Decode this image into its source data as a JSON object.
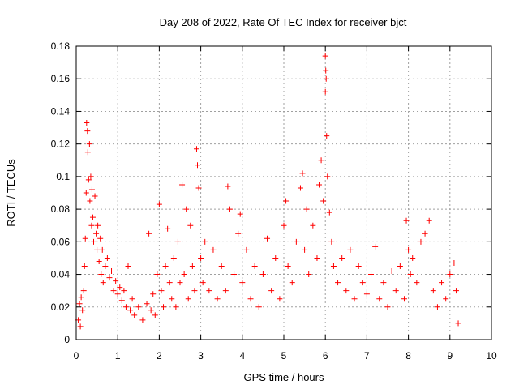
{
  "chart_data": {
    "type": "scatter",
    "title": "Day 208 of 2022, Rate Of TEC Index for receiver bjct",
    "xlabel": "GPS time / hours",
    "ylabel": "ROTI / TECUs",
    "xlim": [
      0,
      10
    ],
    "ylim": [
      0,
      0.18
    ],
    "x_ticks": [
      "0",
      "1",
      "2",
      "3",
      "4",
      "5",
      "6",
      "7",
      "8",
      "9",
      "10"
    ],
    "y_ticks": [
      "0",
      "0.02",
      "0.04",
      "0.06",
      "0.08",
      "0.1",
      "0.12",
      "0.14",
      "0.16",
      "0.18"
    ],
    "grid": true,
    "marker": "plus",
    "marker_color": "#ff0000",
    "series": [
      {
        "values": [
          [
            0.05,
            0.012
          ],
          [
            0.08,
            0.022
          ],
          [
            0.1,
            0.008
          ],
          [
            0.12,
            0.026
          ],
          [
            0.15,
            0.018
          ],
          [
            0.18,
            0.03
          ],
          [
            0.2,
            0.045
          ],
          [
            0.22,
            0.062
          ],
          [
            0.24,
            0.09
          ],
          [
            0.25,
            0.133
          ],
          [
            0.27,
            0.128
          ],
          [
            0.28,
            0.115
          ],
          [
            0.3,
            0.098
          ],
          [
            0.32,
            0.12
          ],
          [
            0.33,
            0.085
          ],
          [
            0.35,
            0.1
          ],
          [
            0.37,
            0.07
          ],
          [
            0.38,
            0.092
          ],
          [
            0.4,
            0.075
          ],
          [
            0.42,
            0.06
          ],
          [
            0.45,
            0.088
          ],
          [
            0.48,
            0.065
          ],
          [
            0.5,
            0.055
          ],
          [
            0.52,
            0.07
          ],
          [
            0.55,
            0.048
          ],
          [
            0.58,
            0.062
          ],
          [
            0.6,
            0.04
          ],
          [
            0.63,
            0.055
          ],
          [
            0.65,
            0.035
          ],
          [
            0.7,
            0.045
          ],
          [
            0.75,
            0.05
          ],
          [
            0.8,
            0.038
          ],
          [
            0.85,
            0.042
          ],
          [
            0.9,
            0.03
          ],
          [
            0.95,
            0.036
          ],
          [
            1.0,
            0.028
          ],
          [
            1.05,
            0.032
          ],
          [
            1.1,
            0.024
          ],
          [
            1.15,
            0.03
          ],
          [
            1.2,
            0.02
          ],
          [
            1.25,
            0.045
          ],
          [
            1.3,
            0.018
          ],
          [
            1.35,
            0.025
          ],
          [
            1.4,
            0.015
          ],
          [
            1.5,
            0.02
          ],
          [
            1.6,
            0.012
          ],
          [
            1.7,
            0.022
          ],
          [
            1.75,
            0.065
          ],
          [
            1.8,
            0.018
          ],
          [
            1.85,
            0.028
          ],
          [
            1.9,
            0.015
          ],
          [
            1.95,
            0.04
          ],
          [
            2.0,
            0.083
          ],
          [
            2.05,
            0.03
          ],
          [
            2.1,
            0.02
          ],
          [
            2.15,
            0.045
          ],
          [
            2.2,
            0.068
          ],
          [
            2.25,
            0.035
          ],
          [
            2.3,
            0.025
          ],
          [
            2.35,
            0.05
          ],
          [
            2.4,
            0.02
          ],
          [
            2.45,
            0.06
          ],
          [
            2.5,
            0.035
          ],
          [
            2.55,
            0.095
          ],
          [
            2.6,
            0.04
          ],
          [
            2.65,
            0.08
          ],
          [
            2.7,
            0.025
          ],
          [
            2.75,
            0.07
          ],
          [
            2.8,
            0.045
          ],
          [
            2.85,
            0.03
          ],
          [
            2.9,
            0.117
          ],
          [
            2.92,
            0.107
          ],
          [
            2.95,
            0.093
          ],
          [
            3.0,
            0.05
          ],
          [
            3.05,
            0.035
          ],
          [
            3.1,
            0.06
          ],
          [
            3.2,
            0.03
          ],
          [
            3.3,
            0.055
          ],
          [
            3.4,
            0.025
          ],
          [
            3.5,
            0.045
          ],
          [
            3.6,
            0.03
          ],
          [
            3.65,
            0.094
          ],
          [
            3.7,
            0.08
          ],
          [
            3.8,
            0.04
          ],
          [
            3.9,
            0.065
          ],
          [
            3.95,
            0.077
          ],
          [
            4.0,
            0.035
          ],
          [
            4.1,
            0.055
          ],
          [
            4.2,
            0.025
          ],
          [
            4.3,
            0.045
          ],
          [
            4.4,
            0.02
          ],
          [
            4.5,
            0.04
          ],
          [
            4.6,
            0.062
          ],
          [
            4.7,
            0.03
          ],
          [
            4.8,
            0.05
          ],
          [
            4.9,
            0.025
          ],
          [
            5.0,
            0.07
          ],
          [
            5.05,
            0.085
          ],
          [
            5.1,
            0.045
          ],
          [
            5.2,
            0.035
          ],
          [
            5.3,
            0.06
          ],
          [
            5.4,
            0.093
          ],
          [
            5.45,
            0.102
          ],
          [
            5.5,
            0.055
          ],
          [
            5.55,
            0.08
          ],
          [
            5.6,
            0.04
          ],
          [
            5.7,
            0.07
          ],
          [
            5.8,
            0.05
          ],
          [
            5.85,
            0.095
          ],
          [
            5.9,
            0.11
          ],
          [
            5.95,
            0.085
          ],
          [
            6.0,
            0.174
          ],
          [
            6.01,
            0.165
          ],
          [
            6.02,
            0.16
          ],
          [
            6.0,
            0.152
          ],
          [
            6.03,
            0.125
          ],
          [
            6.05,
            0.1
          ],
          [
            6.1,
            0.078
          ],
          [
            6.15,
            0.06
          ],
          [
            6.2,
            0.045
          ],
          [
            6.3,
            0.035
          ],
          [
            6.4,
            0.05
          ],
          [
            6.5,
            0.03
          ],
          [
            6.6,
            0.055
          ],
          [
            6.7,
            0.025
          ],
          [
            6.8,
            0.045
          ],
          [
            6.9,
            0.035
          ],
          [
            7.0,
            0.028
          ],
          [
            7.1,
            0.04
          ],
          [
            7.2,
            0.057
          ],
          [
            7.3,
            0.025
          ],
          [
            7.4,
            0.035
          ],
          [
            7.5,
            0.02
          ],
          [
            7.6,
            0.042
          ],
          [
            7.7,
            0.03
          ],
          [
            7.8,
            0.045
          ],
          [
            7.9,
            0.025
          ],
          [
            7.95,
            0.073
          ],
          [
            8.0,
            0.055
          ],
          [
            8.05,
            0.04
          ],
          [
            8.1,
            0.05
          ],
          [
            8.2,
            0.035
          ],
          [
            8.3,
            0.06
          ],
          [
            8.4,
            0.065
          ],
          [
            8.5,
            0.073
          ],
          [
            8.6,
            0.03
          ],
          [
            8.7,
            0.02
          ],
          [
            8.8,
            0.035
          ],
          [
            8.9,
            0.025
          ],
          [
            9.0,
            0.04
          ],
          [
            9.1,
            0.047
          ],
          [
            9.15,
            0.03
          ],
          [
            9.2,
            0.01
          ]
        ]
      }
    ]
  }
}
